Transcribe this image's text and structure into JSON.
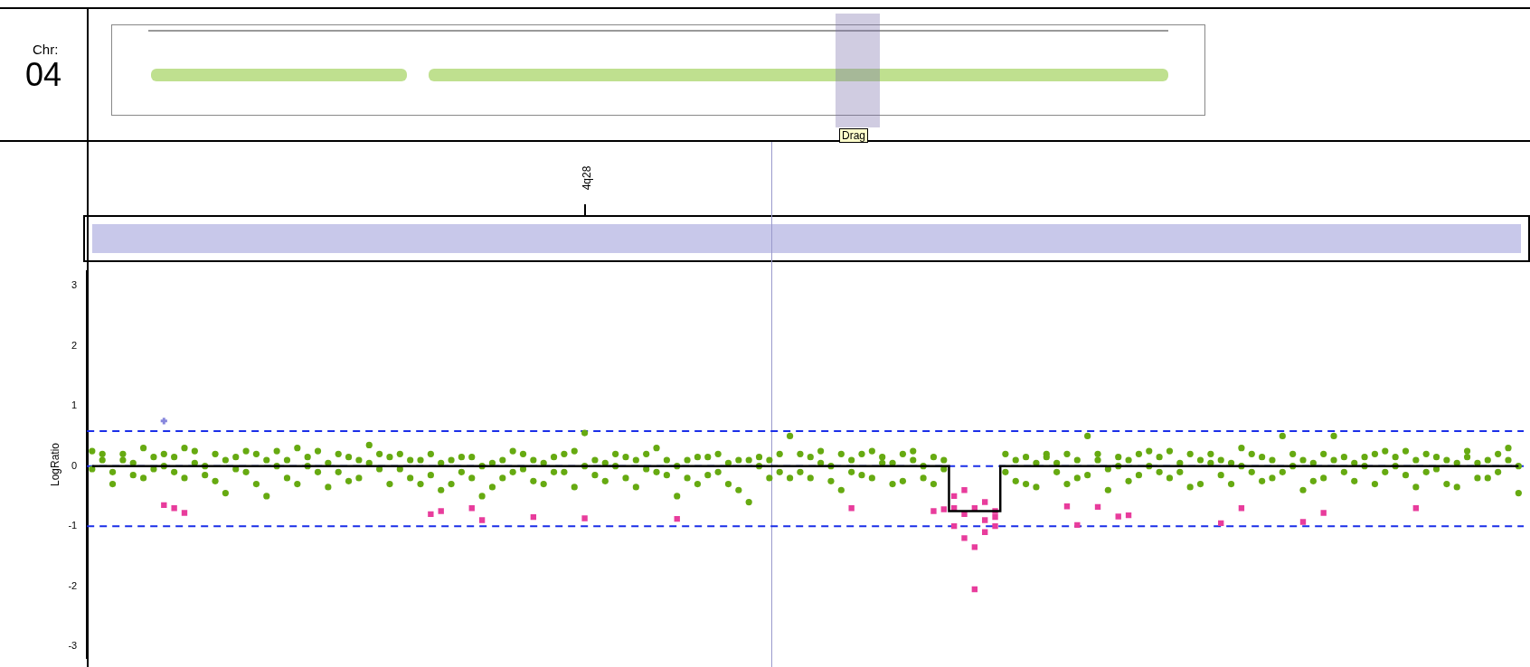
{
  "chart_data": {
    "type": "scatter",
    "ylabel": "LogRatio",
    "annotations": [
      "Chr:",
      "04",
      "Drag",
      "4q28"
    ],
    "categories": [
      null,
      null,
      null,
      null,
      null,
      null,
      null,
      null,
      null,
      null,
      null,
      null,
      null,
      null,
      null,
      null,
      null,
      null,
      null,
      null,
      null,
      null,
      null,
      null,
      null,
      null,
      null,
      null,
      null,
      null,
      null,
      null,
      null,
      null,
      null,
      null,
      null,
      null,
      null,
      null,
      null,
      null,
      null,
      null,
      null,
      null,
      null,
      null,
      null,
      null,
      null,
      null,
      null,
      null,
      null,
      null,
      null,
      null,
      null,
      null,
      null,
      null,
      null,
      null,
      null,
      null,
      null,
      null,
      null,
      null,
      null,
      null,
      null,
      null,
      null,
      null,
      null,
      null,
      null,
      null,
      null,
      null,
      null,
      null,
      null,
      null,
      null,
      null,
      null,
      null,
      null,
      null,
      null,
      null,
      null,
      null,
      null,
      null,
      null,
      null,
      null,
      null,
      null,
      null,
      null,
      null,
      null,
      null,
      null,
      null,
      null,
      null,
      null,
      null,
      null,
      null,
      null,
      null,
      null,
      null,
      null,
      null,
      null,
      null,
      null,
      null,
      null,
      null,
      null,
      null,
      null,
      null,
      null,
      null,
      null,
      null,
      null,
      null,
      null,
      null
    ],
    "series": [
      {
        "color": "#66aa11",
        "marker": "circle",
        "values": [
          0.25,
          0.1,
          -0.1,
          0.2,
          0.05,
          -0.2,
          0.15,
          0.0,
          -0.1,
          0.3,
          0.05,
          -0.15,
          0.2,
          0.1,
          -0.05,
          0.25,
          -0.3,
          0.1,
          0.0,
          -0.2,
          0.3,
          0.15,
          -0.1,
          0.05,
          0.2,
          -0.25,
          0.1,
          0.35,
          -0.05,
          0.15,
          0.2,
          -0.2,
          0.1,
          -0.15,
          0.05,
          -0.3,
          0.15,
          -0.2,
          0.0,
          -0.35,
          0.1,
          -0.1,
          0.2,
          -0.25,
          0.05,
          0.15,
          -0.1,
          0.25,
          0.55,
          -0.15,
          0.05,
          0.2,
          -0.2,
          0.1,
          -0.05,
          0.3,
          -0.15,
          0.0,
          0.1,
          -0.3,
          0.15,
          -0.1,
          0.05,
          -0.4,
          0.1,
          0.0,
          -0.2,
          0.2,
          0.5,
          -0.1,
          0.15,
          0.05,
          -0.25,
          0.2,
          0.1,
          -0.15,
          0.25,
          0.05,
          -0.3,
          0.2,
          0.1,
          -0.2,
          0.15,
          -0.05,
          null,
          null,
          null,
          null,
          null,
          0.2,
          0.1,
          -0.3,
          0.05,
          0.15,
          -0.1,
          0.2,
          -0.2,
          0.5,
          0.1,
          -0.05,
          0.15,
          -0.25,
          0.2,
          0.0,
          -0.1,
          0.25,
          0.05,
          -0.35,
          0.1,
          0.2,
          -0.15,
          0.05,
          0.3,
          -0.1,
          0.15,
          -0.2,
          0.5,
          0.0,
          0.1,
          -0.25,
          0.2,
          0.5,
          -0.1,
          0.05,
          0.15,
          -0.3,
          0.25,
          0.0,
          -0.15,
          0.1,
          0.2,
          -0.05,
          0.1,
          -0.35,
          0.15,
          0.05,
          -0.2,
          0.2,
          0.1,
          -0.45
        ]
      },
      {
        "color": "#66aa11",
        "marker": "circle",
        "values": [
          -0.05,
          0.2,
          -0.3,
          0.1,
          -0.15,
          0.3,
          -0.05,
          0.2,
          0.15,
          -0.2,
          0.25,
          0.0,
          -0.25,
          -0.45,
          0.15,
          -0.1,
          0.2,
          -0.5,
          0.25,
          0.1,
          -0.3,
          0.0,
          0.25,
          -0.35,
          -0.1,
          0.15,
          -0.2,
          0.05,
          0.2,
          -0.3,
          -0.05,
          0.1,
          -0.3,
          0.2,
          -0.4,
          0.1,
          -0.1,
          0.15,
          -0.5,
          0.05,
          -0.2,
          0.25,
          -0.05,
          0.1,
          -0.3,
          -0.1,
          0.2,
          -0.35,
          0.0,
          0.1,
          -0.25,
          0.0,
          0.15,
          -0.35,
          0.2,
          -0.1,
          0.1,
          -0.5,
          -0.2,
          0.15,
          -0.15,
          0.2,
          -0.3,
          0.1,
          -0.6,
          0.15,
          0.1,
          -0.1,
          -0.2,
          0.2,
          -0.2,
          0.25,
          0.0,
          -0.4,
          -0.1,
          0.2,
          -0.2,
          0.15,
          0.05,
          -0.25,
          0.25,
          0.0,
          -0.3,
          0.1,
          null,
          null,
          null,
          null,
          null,
          -0.1,
          -0.25,
          0.15,
          -0.35,
          0.2,
          0.05,
          -0.3,
          0.1,
          -0.15,
          0.2,
          -0.4,
          0.0,
          0.1,
          -0.15,
          0.25,
          0.15,
          -0.2,
          -0.1,
          0.2,
          -0.3,
          0.05,
          0.1,
          -0.3,
          0.0,
          0.2,
          -0.25,
          0.1,
          -0.1,
          0.2,
          -0.4,
          0.05,
          -0.2,
          0.1,
          0.15,
          -0.25,
          0.0,
          0.2,
          -0.1,
          0.15,
          0.25,
          -0.35,
          -0.1,
          0.15,
          -0.3,
          0.05,
          0.25,
          -0.2,
          0.1,
          -0.1,
          0.3,
          0.0
        ]
      },
      {
        "color": "#e83c9c",
        "marker": "square",
        "values": [
          null,
          null,
          null,
          null,
          null,
          null,
          null,
          -0.65,
          -0.7,
          null,
          null,
          null,
          null,
          null,
          null,
          null,
          null,
          null,
          null,
          null,
          null,
          null,
          null,
          null,
          null,
          null,
          null,
          null,
          null,
          null,
          null,
          null,
          null,
          -0.8,
          null,
          null,
          null,
          -0.7,
          null,
          null,
          null,
          null,
          null,
          -0.85,
          null,
          null,
          null,
          null,
          -0.87,
          null,
          null,
          null,
          null,
          null,
          null,
          null,
          null,
          -0.88,
          null,
          null,
          null,
          null,
          null,
          null,
          null,
          null,
          null,
          null,
          null,
          null,
          null,
          null,
          null,
          null,
          -0.7,
          null,
          null,
          null,
          null,
          null,
          null,
          null,
          -0.75,
          -0.72,
          -0.5,
          -0.8,
          -2.05,
          -0.6,
          -0.85,
          null,
          null,
          null,
          null,
          null,
          null,
          -0.67,
          -0.98,
          null,
          -0.68,
          null,
          -0.84,
          -0.82,
          null,
          null,
          null,
          null,
          null,
          null,
          null,
          null,
          -0.95,
          null,
          -0.7,
          null,
          null,
          null,
          null,
          null,
          -0.93,
          null,
          -0.78,
          null,
          null,
          null,
          null,
          null,
          null,
          null,
          null,
          -0.7,
          null,
          null,
          null,
          null,
          null,
          null,
          null,
          null,
          null,
          null
        ]
      },
      {
        "color": "#e83c9c",
        "marker": "square",
        "values": [
          null,
          null,
          null,
          null,
          null,
          null,
          null,
          null,
          null,
          -0.78,
          null,
          null,
          null,
          null,
          null,
          null,
          null,
          null,
          null,
          null,
          null,
          null,
          null,
          null,
          null,
          null,
          null,
          null,
          null,
          null,
          null,
          null,
          null,
          null,
          -0.75,
          null,
          null,
          null,
          -0.9,
          null,
          null,
          null,
          null,
          null,
          null,
          null,
          null,
          null,
          null,
          null,
          null,
          null,
          null,
          null,
          null,
          null,
          null,
          null,
          null,
          null,
          null,
          null,
          null,
          null,
          null,
          null,
          null,
          null,
          null,
          null,
          null,
          null,
          null,
          null,
          null,
          null,
          null,
          null,
          null,
          null,
          null,
          null,
          null,
          null,
          -1.0,
          -1.2,
          -0.7,
          -1.1,
          -0.75,
          null,
          null,
          null,
          null,
          null,
          null,
          null,
          null,
          null,
          null,
          null,
          null,
          null,
          null,
          null,
          null,
          null,
          null,
          null,
          null,
          null,
          null,
          null,
          null,
          null,
          null,
          null,
          null,
          null,
          null,
          null,
          null,
          null,
          null,
          null,
          null,
          null,
          null,
          null,
          null,
          null,
          null,
          null,
          null,
          null,
          null,
          null,
          null,
          null,
          null,
          null
        ]
      },
      {
        "color": "#e83c9c",
        "marker": "square",
        "values": [
          null,
          null,
          null,
          null,
          null,
          null,
          null,
          null,
          null,
          null,
          null,
          null,
          null,
          null,
          null,
          null,
          null,
          null,
          null,
          null,
          null,
          null,
          null,
          null,
          null,
          null,
          null,
          null,
          null,
          null,
          null,
          null,
          null,
          null,
          null,
          null,
          null,
          null,
          null,
          null,
          null,
          null,
          null,
          null,
          null,
          null,
          null,
          null,
          null,
          null,
          null,
          null,
          null,
          null,
          null,
          null,
          null,
          null,
          null,
          null,
          null,
          null,
          null,
          null,
          null,
          null,
          null,
          null,
          null,
          null,
          null,
          null,
          null,
          null,
          null,
          null,
          null,
          null,
          null,
          null,
          null,
          null,
          null,
          null,
          -0.7,
          -0.4,
          -1.35,
          -0.9,
          -1.0,
          null,
          null,
          null,
          null,
          null,
          null,
          null,
          null,
          null,
          null,
          null,
          null,
          null,
          null,
          null,
          null,
          null,
          null,
          null,
          null,
          null,
          null,
          null,
          null,
          null,
          null,
          null,
          null,
          null,
          null,
          null,
          null,
          null,
          null,
          null,
          null,
          null,
          null,
          null,
          null,
          null,
          null,
          null,
          null,
          null,
          null,
          null,
          null,
          null,
          null,
          null
        ]
      },
      {
        "color": "#8888dd",
        "marker": "cross",
        "values": [
          null,
          null,
          null,
          null,
          null,
          null,
          null,
          0.75,
          null,
          null,
          null,
          null,
          null,
          null,
          null,
          null,
          null,
          null,
          null,
          null,
          null,
          null,
          null,
          null,
          null,
          null,
          null,
          null,
          null,
          null,
          null,
          null,
          null,
          null,
          null,
          null,
          null,
          null,
          null,
          null,
          null,
          null,
          null,
          null,
          null,
          null,
          null,
          null,
          null,
          null,
          null,
          null,
          null,
          null,
          null,
          null,
          null,
          null,
          null,
          null,
          null,
          null,
          null,
          null,
          null,
          null,
          null,
          null,
          null,
          null,
          null,
          null,
          null,
          null,
          null,
          null,
          null,
          null,
          null,
          null,
          null,
          null,
          null,
          null,
          null,
          null,
          null,
          null,
          null,
          null,
          null,
          null,
          null,
          null,
          null,
          null,
          null,
          null,
          null,
          null,
          null,
          null,
          null,
          null,
          null,
          null,
          null,
          null,
          null,
          null,
          null,
          null,
          null,
          null,
          null,
          null,
          null,
          null,
          null,
          null,
          null,
          null,
          null,
          null,
          null,
          null,
          null,
          null,
          null,
          null,
          null,
          null,
          null,
          null,
          null,
          null,
          null,
          null,
          null,
          null
        ]
      },
      {
        "type": "step",
        "color": "#000000",
        "line_style": "solid",
        "values": [
          0,
          0,
          0,
          0,
          0,
          0,
          0,
          0,
          0,
          0,
          0,
          0,
          0,
          0,
          0,
          0,
          0,
          0,
          0,
          0,
          0,
          0,
          0,
          0,
          0,
          0,
          0,
          0,
          0,
          0,
          0,
          0,
          0,
          0,
          0,
          0,
          0,
          0,
          0,
          0,
          0,
          0,
          0,
          0,
          0,
          0,
          0,
          0,
          0,
          0,
          0,
          0,
          0,
          0,
          0,
          0,
          0,
          0,
          0,
          0,
          0,
          0,
          0,
          0,
          0,
          0,
          0,
          0,
          0,
          0,
          0,
          0,
          0,
          0,
          0,
          0,
          0,
          0,
          0,
          0,
          0,
          0,
          0,
          0,
          -0.75,
          -0.75,
          -0.75,
          -0.75,
          -0.75,
          0,
          0,
          0,
          0,
          0,
          0,
          0,
          0,
          0,
          0,
          0,
          0,
          0,
          0,
          0,
          0,
          0,
          0,
          0,
          0,
          0,
          0,
          0,
          0,
          0,
          0,
          0,
          0,
          0,
          0,
          0,
          0,
          0,
          0,
          0,
          0,
          0,
          0,
          0,
          0,
          0,
          0,
          0,
          0,
          0,
          0,
          0,
          0,
          0,
          0,
          0
        ]
      }
    ],
    "ylim": [
      -3.2,
      3.25
    ],
    "yticks": [
      -3,
      -2,
      -1,
      0,
      1,
      2,
      3
    ],
    "ref_lines": [
      {
        "axis": "y",
        "value": 0.58,
        "color": "#1a2ee8",
        "line_style": "dashed"
      },
      {
        "axis": "y",
        "value": 0,
        "color": "#1a2ee8",
        "line_style": "dashed"
      },
      {
        "axis": "y",
        "value": -1.0,
        "color": "#1a2ee8",
        "line_style": "dashed"
      }
    ],
    "grid": false,
    "legend": false,
    "tick_labels": "y"
  }
}
